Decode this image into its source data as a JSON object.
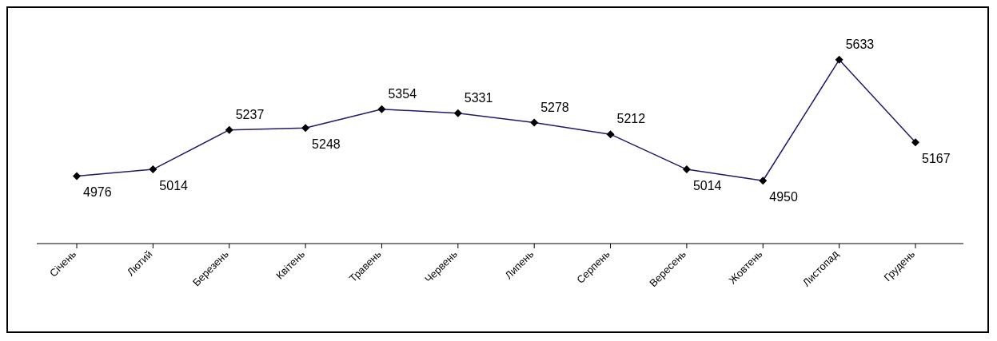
{
  "chart_data": {
    "type": "line",
    "categories": [
      "Січень",
      "Лютий",
      "Березень",
      "Квітень",
      "Травень",
      "Червень",
      "Липень",
      "Серпень",
      "Вересень",
      "Жовтень",
      "Листопад",
      "Грудень"
    ],
    "series": [
      {
        "color": "#1f1a6e",
        "values": [
          4976,
          5014,
          5237,
          5248,
          5354,
          5331,
          5278,
          5212,
          5014,
          4950,
          5633,
          5167
        ]
      }
    ],
    "data_labels": true,
    "marker": "diamond",
    "line_style": "solid",
    "grid": false,
    "legend": false
  }
}
